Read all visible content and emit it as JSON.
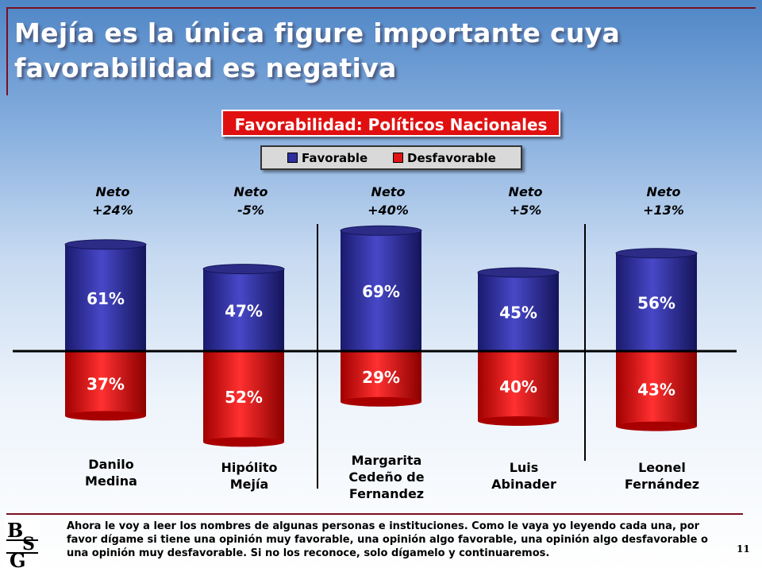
{
  "title": "Mejía es la única figure importante cuya favorabilidad es negativa",
  "chart_data": {
    "type": "bar",
    "title": "Favorabilidad: Políticos Nacionales",
    "legend": [
      "Favorable",
      "Desfavorable"
    ],
    "legend_position": "top",
    "categories": [
      "Danilo Medina",
      "Hipólito Mejía",
      "Margarita Cedeño de Fernandez",
      "Luis Abinader",
      "Leonel Fernández"
    ],
    "category_lines": [
      [
        "Danilo",
        "Medina"
      ],
      [
        "Hipólito",
        "Mejía"
      ],
      [
        "Margarita",
        "Cedeño de",
        "Fernandez"
      ],
      [
        "Luis",
        "Abinader"
      ],
      [
        "Leonel",
        "Fernández"
      ]
    ],
    "series": [
      {
        "name": "Favorable",
        "values": [
          61,
          47,
          69,
          45,
          56
        ],
        "labels": [
          "61%",
          "47%",
          "69%",
          "45%",
          "56%"
        ]
      },
      {
        "name": "Desfavorable",
        "values": [
          37,
          52,
          29,
          40,
          43
        ],
        "labels": [
          "37%",
          "52%",
          "29%",
          "40%",
          "43%"
        ]
      }
    ],
    "neto_prefix": "Neto",
    "neto": [
      "+24%",
      "-5%",
      "+40%",
      "+5%",
      "+13%"
    ],
    "colors": {
      "favorable": "#2e2e9e",
      "desfavorable": "#e01414"
    }
  },
  "footnote": "Ahora le voy a leer los nombres de algunas personas e instituciones. Como le vaya yo leyendo cada una, por favor dígame si tiene una opinión muy favorable, una opinión algo favorable, una opinión algo desfavorable o una opinión muy desfavorable. Si no los reconoce, solo dígamelo y continuaremos.",
  "logo_text": "BSG",
  "page_number": "11"
}
